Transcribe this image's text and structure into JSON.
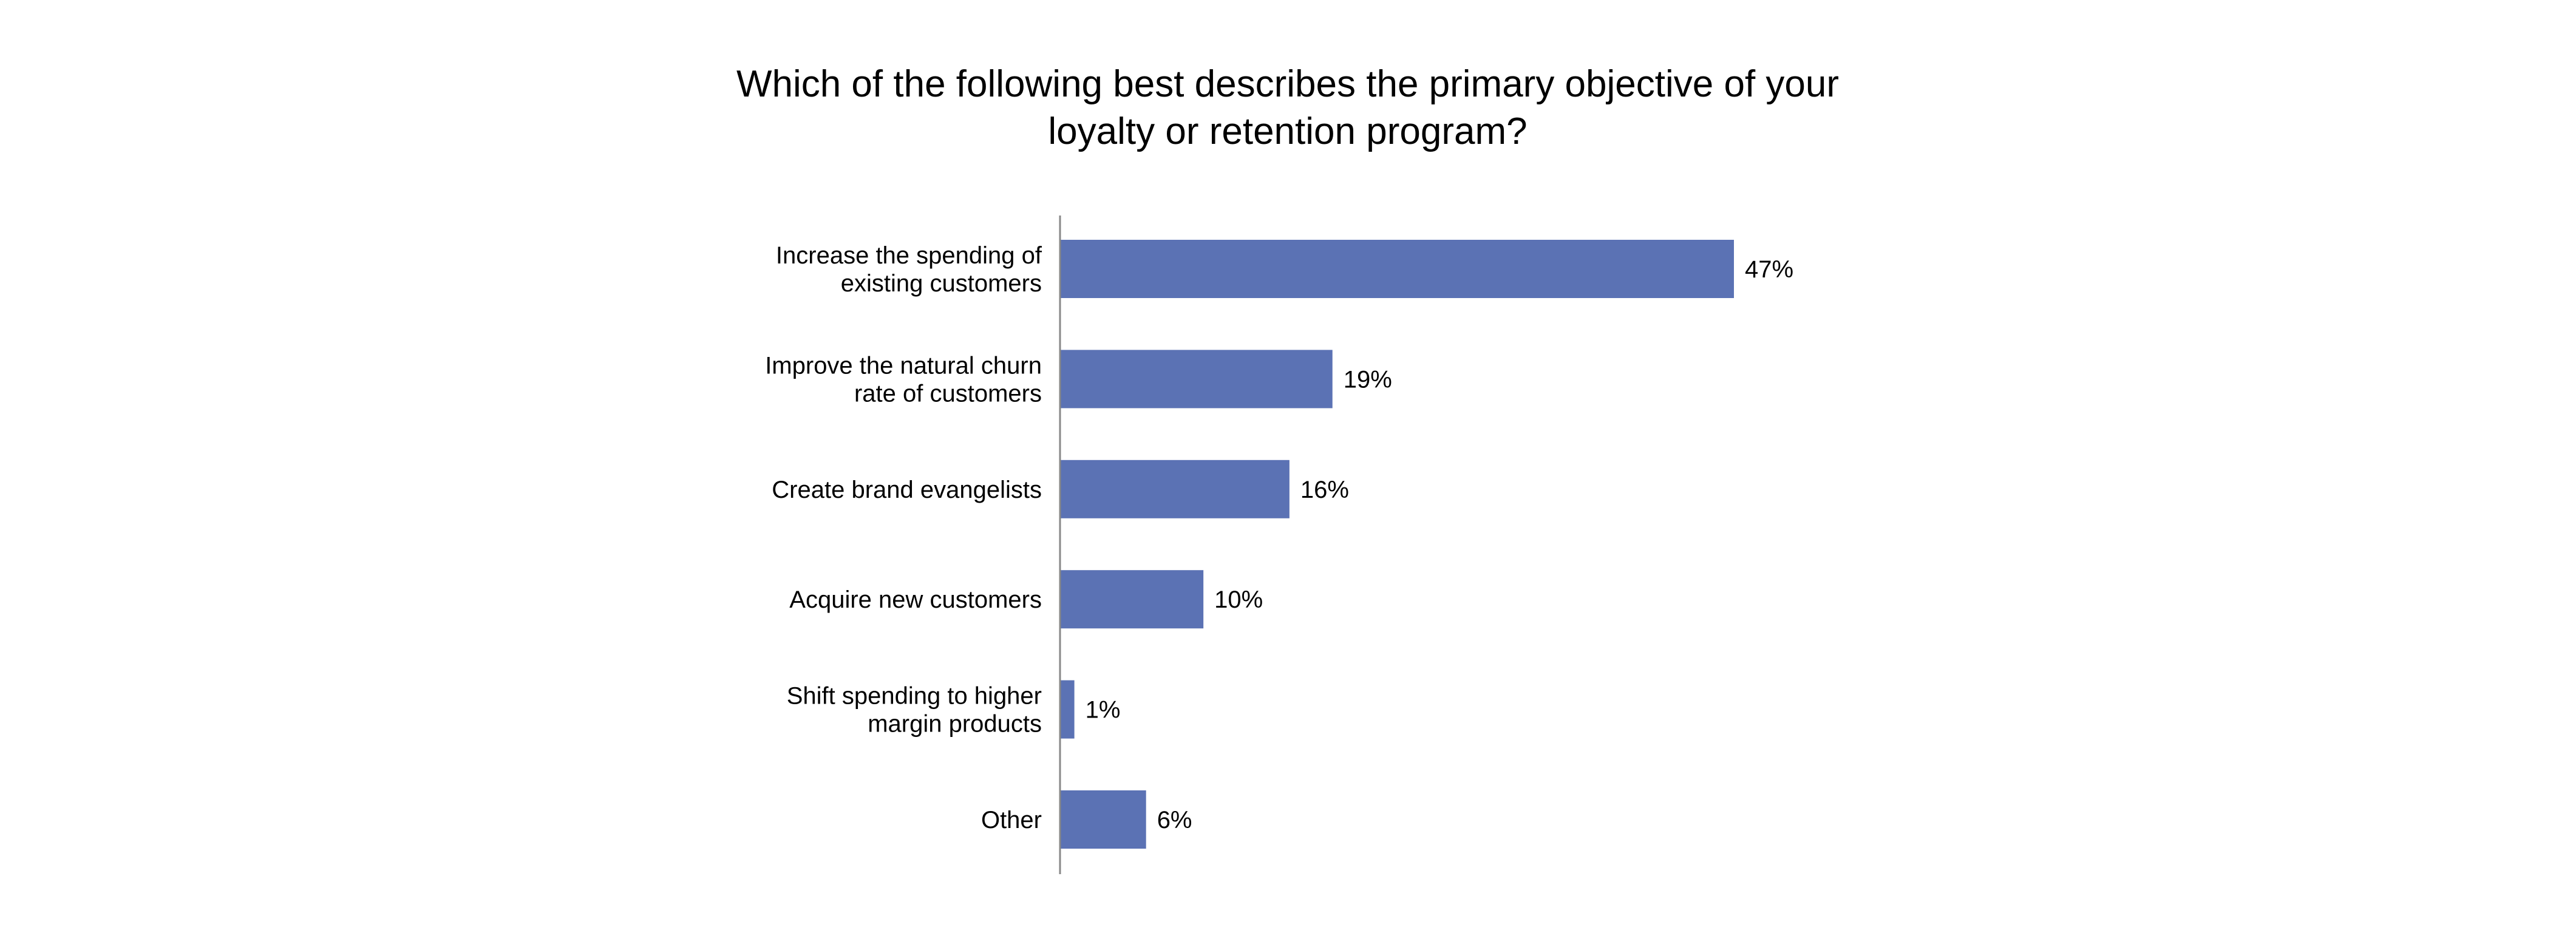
{
  "chart_data": {
    "type": "bar",
    "orientation": "horizontal",
    "title": "Which of the following best describes the primary objective of your loyalty or retention program?",
    "title_lines": [
      "Which of the following best describes the primary objective of your",
      "loyalty or retention program?"
    ],
    "categories": [
      [
        "Increase the spending of",
        "existing customers"
      ],
      [
        "Improve the natural churn",
        "rate of customers"
      ],
      [
        "Create brand evangelists"
      ],
      [
        "Acquire new customers"
      ],
      [
        "Shift spending to higher",
        "margin products"
      ],
      [
        "Other"
      ]
    ],
    "values": [
      47,
      19,
      16,
      10,
      1,
      6
    ],
    "value_labels": [
      "47%",
      "19%",
      "16%",
      "10%",
      "1%",
      "6%"
    ],
    "unit": "%",
    "xlim": [
      0,
      50
    ],
    "grid": false,
    "legend": "none",
    "bar_color": "#5b72b4",
    "axis_color": "#888888"
  }
}
